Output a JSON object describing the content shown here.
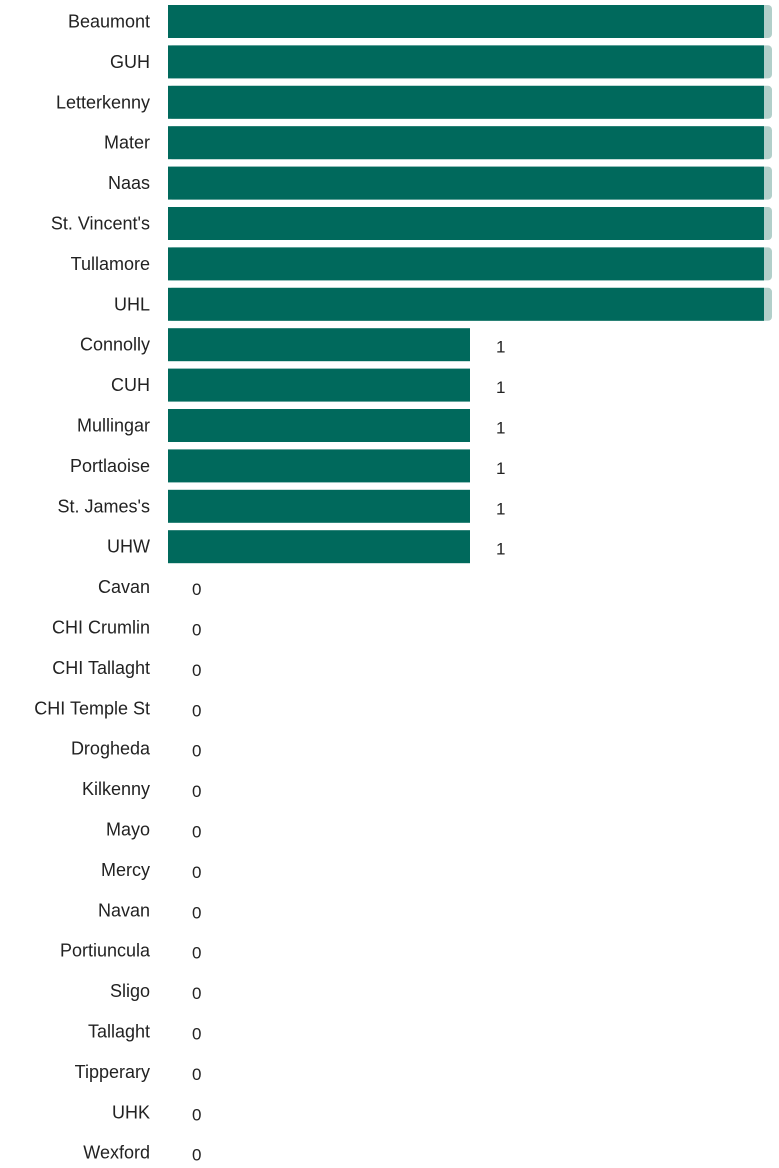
{
  "colors": {
    "bar": "#00695c",
    "bar_edge": "#b2cfca",
    "text": "#222222"
  },
  "chart_data": {
    "type": "bar",
    "orientation": "horizontal",
    "title": "",
    "xlabel": "",
    "ylabel": "",
    "xlim": [
      0,
      2
    ],
    "grid": false,
    "legend": "none",
    "categories": [
      "Beaumont",
      "GUH",
      "Letterkenny",
      "Mater",
      "Naas",
      "St. Vincent's",
      "Tullamore",
      "UHL",
      "Connolly",
      "CUH",
      "Mullingar",
      "Portlaoise",
      "St. James's",
      "UHW",
      "Cavan",
      "CHI Crumlin",
      "CHI Tallaght",
      "CHI Temple St",
      "Drogheda",
      "Kilkenny",
      "Mayo",
      "Mercy",
      "Navan",
      "Portiuncula",
      "Sligo",
      "Tallaght",
      "Tipperary",
      "UHK",
      "Wexford"
    ],
    "values": [
      2,
      2,
      2,
      2,
      2,
      2,
      2,
      2,
      1,
      1,
      1,
      1,
      1,
      1,
      0,
      0,
      0,
      0,
      0,
      0,
      0,
      0,
      0,
      0,
      0,
      0,
      0,
      0,
      0
    ],
    "value_labels": [
      "",
      "",
      "",
      "",
      "",
      "",
      "",
      "",
      "1",
      "1",
      "1",
      "1",
      "1",
      "1",
      "0",
      "0",
      "0",
      "0",
      "0",
      "0",
      "0",
      "0",
      "0",
      "0",
      "0",
      "0",
      "0",
      "0",
      "0"
    ]
  }
}
